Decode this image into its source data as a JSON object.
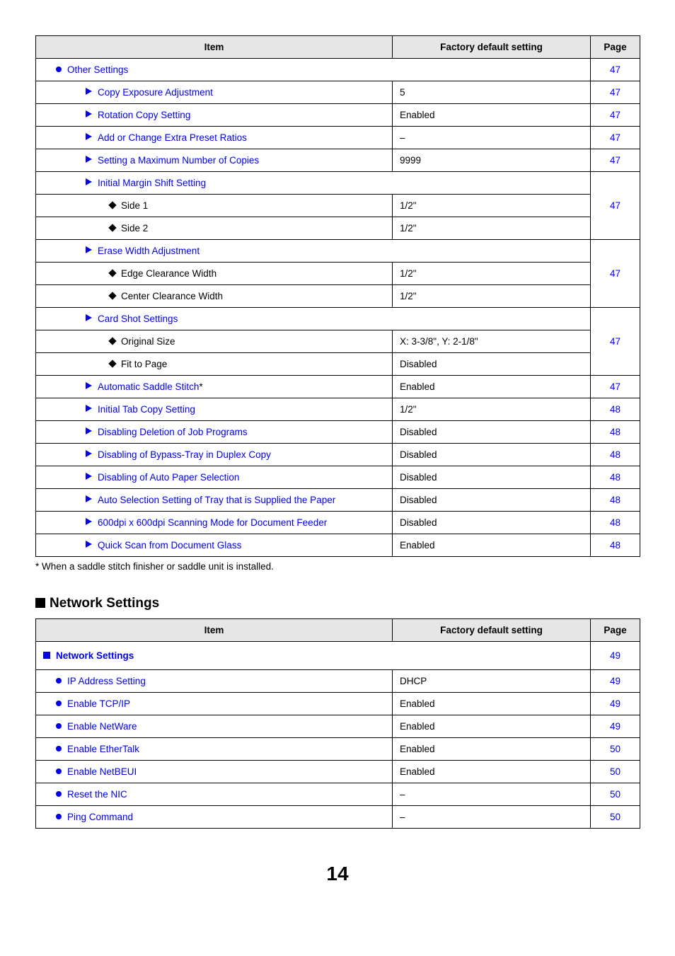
{
  "table1": {
    "headers": {
      "item": "Item",
      "fds": "Factory default setting",
      "page": "Page"
    },
    "rows": [
      {
        "kind": "header",
        "indent": 1,
        "marker": "dot",
        "link": true,
        "label": "Other Settings",
        "page": "47"
      },
      {
        "kind": "row",
        "indent": 2,
        "marker": "tri",
        "link": true,
        "label": "Copy Exposure Adjustment",
        "value": "5",
        "page": "47"
      },
      {
        "kind": "row",
        "indent": 2,
        "marker": "tri",
        "link": true,
        "label": "Rotation Copy Setting",
        "value": "Enabled",
        "page": "47"
      },
      {
        "kind": "row",
        "indent": 2,
        "marker": "tri",
        "link": true,
        "label": "Add or Change Extra Preset Ratios",
        "value": "–",
        "page": "47"
      },
      {
        "kind": "row",
        "indent": 2,
        "marker": "tri",
        "link": true,
        "label": "Setting a Maximum Number of Copies",
        "value": "9999",
        "page": "47"
      },
      {
        "kind": "subheader",
        "indent": 2,
        "marker": "tri",
        "link": true,
        "label": "Initial Margin Shift Setting"
      },
      {
        "kind": "row",
        "indent": 3,
        "marker": "dia",
        "link": false,
        "label": "Side 1",
        "value": "1/2\"",
        "page": "47",
        "rowspan": 2
      },
      {
        "kind": "row",
        "indent": 3,
        "marker": "dia",
        "link": false,
        "label": "Side 2",
        "value": "1/2\""
      },
      {
        "kind": "subheader",
        "indent": 2,
        "marker": "tri",
        "link": true,
        "label": "Erase Width Adjustment"
      },
      {
        "kind": "row",
        "indent": 3,
        "marker": "dia",
        "link": false,
        "label": "Edge Clearance Width",
        "value": "1/2\"",
        "page": "47",
        "rowspan": 2
      },
      {
        "kind": "row",
        "indent": 3,
        "marker": "dia",
        "link": false,
        "label": "Center Clearance Width",
        "value": "1/2\""
      },
      {
        "kind": "subheader",
        "indent": 2,
        "marker": "tri",
        "link": true,
        "label": "Card Shot Settings"
      },
      {
        "kind": "row",
        "indent": 3,
        "marker": "dia",
        "link": false,
        "label": "Original Size",
        "value": "X: 3-3/8\", Y: 2-1/8\"",
        "page": "47",
        "rowspan": 2
      },
      {
        "kind": "row",
        "indent": 3,
        "marker": "dia",
        "link": false,
        "label": "Fit to Page",
        "value": "Disabled"
      },
      {
        "kind": "row",
        "indent": 2,
        "marker": "tri",
        "link": true,
        "label": "Automatic Saddle Stitch",
        "suffix": "*",
        "value": "Enabled",
        "page": "47"
      },
      {
        "kind": "row",
        "indent": 2,
        "marker": "tri",
        "link": true,
        "label": "Initial Tab Copy Setting",
        "value": "1/2\"",
        "page": "48"
      },
      {
        "kind": "row",
        "indent": 2,
        "marker": "tri",
        "link": true,
        "label": "Disabling Deletion of Job Programs",
        "value": "Disabled",
        "page": "48"
      },
      {
        "kind": "row",
        "indent": 2,
        "marker": "tri",
        "link": true,
        "label": "Disabling of Bypass-Tray in Duplex Copy",
        "value": "Disabled",
        "page": "48"
      },
      {
        "kind": "row",
        "indent": 2,
        "marker": "tri",
        "link": true,
        "label": "Disabling of Auto Paper Selection",
        "value": "Disabled",
        "page": "48"
      },
      {
        "kind": "row",
        "indent": 2,
        "marker": "tri",
        "link": true,
        "label": "Auto Selection Setting of Tray that is Supplied the Paper",
        "value": "Disabled",
        "page": "48"
      },
      {
        "kind": "row",
        "indent": 2,
        "marker": "tri",
        "link": true,
        "label": "600dpi x 600dpi Scanning Mode for Document Feeder",
        "value": "Disabled",
        "page": "48"
      },
      {
        "kind": "row",
        "indent": 2,
        "marker": "tri",
        "link": true,
        "label": "Quick Scan from Document Glass",
        "value": "Enabled",
        "page": "48"
      }
    ]
  },
  "footnote": "*  When a saddle stitch finisher or saddle unit is installed.",
  "section2_title": "Network Settings",
  "table2": {
    "headers": {
      "item": "Item",
      "fds": "Factory default setting",
      "page": "Page"
    },
    "rows": [
      {
        "kind": "header",
        "indent": 0,
        "marker": "sq",
        "link": true,
        "label": "Network Settings",
        "page": "49",
        "bold": true
      },
      {
        "kind": "row",
        "indent": 1,
        "marker": "dot",
        "link": true,
        "label": "IP Address Setting",
        "value": "DHCP",
        "page": "49"
      },
      {
        "kind": "row",
        "indent": 1,
        "marker": "dot",
        "link": true,
        "label": "Enable TCP/IP",
        "value": "Enabled",
        "page": "49"
      },
      {
        "kind": "row",
        "indent": 1,
        "marker": "dot",
        "link": true,
        "label": "Enable NetWare",
        "value": "Enabled",
        "page": "49"
      },
      {
        "kind": "row",
        "indent": 1,
        "marker": "dot",
        "link": true,
        "label": "Enable EtherTalk",
        "value": "Enabled",
        "page": "50"
      },
      {
        "kind": "row",
        "indent": 1,
        "marker": "dot",
        "link": true,
        "label": "Enable NetBEUI",
        "value": "Enabled",
        "page": "50"
      },
      {
        "kind": "row",
        "indent": 1,
        "marker": "dot",
        "link": true,
        "label": "Reset the NIC",
        "value": "–",
        "page": "50"
      },
      {
        "kind": "row",
        "indent": 1,
        "marker": "dot",
        "link": true,
        "label": "Ping Command",
        "value": "–",
        "page": "50"
      }
    ]
  },
  "pageNumber": "14"
}
